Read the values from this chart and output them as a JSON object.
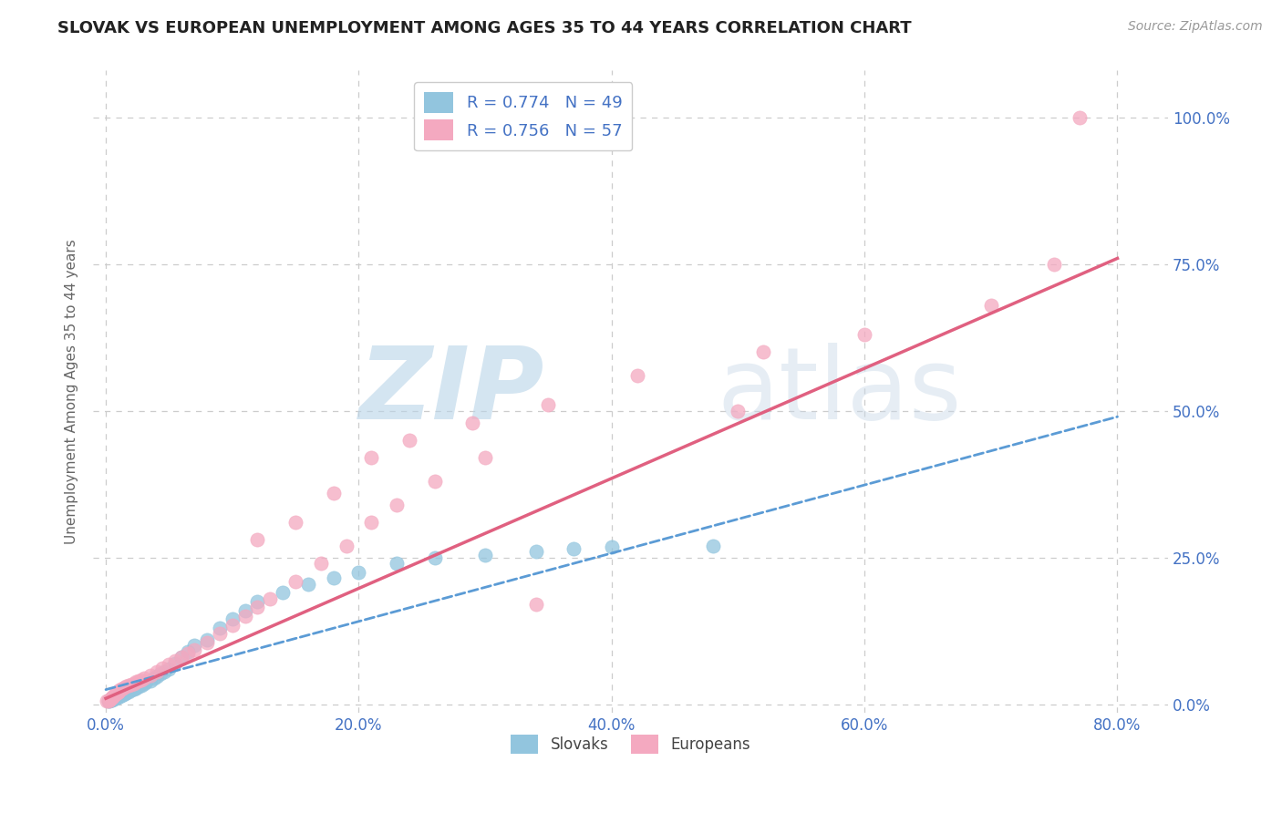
{
  "title": "SLOVAK VS EUROPEAN UNEMPLOYMENT AMONG AGES 35 TO 44 YEARS CORRELATION CHART",
  "source": "Source: ZipAtlas.com",
  "ylabel": "Unemployment Among Ages 35 to 44 years",
  "xlabel_ticks": [
    "0.0%",
    "20.0%",
    "40.0%",
    "60.0%",
    "80.0%"
  ],
  "xlabel_vals": [
    0.0,
    0.2,
    0.4,
    0.6,
    0.8
  ],
  "ylabel_ticks": [
    "0.0%",
    "25.0%",
    "50.0%",
    "75.0%",
    "100.0%"
  ],
  "ylabel_vals": [
    0.0,
    0.25,
    0.5,
    0.75,
    1.0
  ],
  "xlim": [
    -0.01,
    0.84
  ],
  "ylim": [
    -0.015,
    1.08
  ],
  "slovak_color": "#92c5de",
  "european_color": "#f4a9c0",
  "slovak_line_color": "#5b9bd5",
  "european_line_color": "#e06080",
  "slovak_R": 0.774,
  "slovak_N": 49,
  "european_R": 0.756,
  "european_N": 57,
  "legend_labels": [
    "Slovaks",
    "Europeans"
  ],
  "title_color": "#222222",
  "axis_color": "#4472c4",
  "grid_color": "#cccccc",
  "sk_x": [
    0.002,
    0.003,
    0.004,
    0.005,
    0.006,
    0.007,
    0.008,
    0.009,
    0.01,
    0.011,
    0.012,
    0.013,
    0.014,
    0.015,
    0.016,
    0.018,
    0.02,
    0.022,
    0.024,
    0.026,
    0.028,
    0.03,
    0.032,
    0.035,
    0.038,
    0.04,
    0.043,
    0.046,
    0.05,
    0.055,
    0.06,
    0.065,
    0.07,
    0.08,
    0.09,
    0.1,
    0.11,
    0.12,
    0.14,
    0.16,
    0.18,
    0.2,
    0.23,
    0.26,
    0.3,
    0.34,
    0.37,
    0.4,
    0.48
  ],
  "sk_y": [
    0.005,
    0.006,
    0.007,
    0.008,
    0.009,
    0.01,
    0.011,
    0.012,
    0.013,
    0.014,
    0.015,
    0.016,
    0.017,
    0.018,
    0.02,
    0.022,
    0.024,
    0.026,
    0.028,
    0.03,
    0.032,
    0.035,
    0.038,
    0.04,
    0.044,
    0.048,
    0.052,
    0.056,
    0.06,
    0.07,
    0.08,
    0.09,
    0.1,
    0.11,
    0.13,
    0.145,
    0.16,
    0.175,
    0.19,
    0.205,
    0.215,
    0.225,
    0.24,
    0.25,
    0.255,
    0.26,
    0.265,
    0.268,
    0.27
  ],
  "eu_x": [
    0.001,
    0.002,
    0.003,
    0.004,
    0.005,
    0.006,
    0.007,
    0.008,
    0.009,
    0.01,
    0.011,
    0.012,
    0.014,
    0.016,
    0.018,
    0.02,
    0.022,
    0.024,
    0.026,
    0.028,
    0.03,
    0.035,
    0.04,
    0.045,
    0.05,
    0.055,
    0.06,
    0.065,
    0.07,
    0.08,
    0.09,
    0.1,
    0.11,
    0.12,
    0.13,
    0.15,
    0.17,
    0.19,
    0.21,
    0.23,
    0.26,
    0.3,
    0.12,
    0.15,
    0.18,
    0.21,
    0.24,
    0.29,
    0.35,
    0.42,
    0.52,
    0.6,
    0.7,
    0.5,
    0.75,
    0.77,
    0.34
  ],
  "eu_y": [
    0.005,
    0.006,
    0.008,
    0.01,
    0.012,
    0.014,
    0.016,
    0.018,
    0.02,
    0.022,
    0.024,
    0.026,
    0.028,
    0.03,
    0.032,
    0.034,
    0.036,
    0.038,
    0.04,
    0.042,
    0.044,
    0.05,
    0.056,
    0.062,
    0.068,
    0.074,
    0.08,
    0.086,
    0.092,
    0.105,
    0.12,
    0.135,
    0.15,
    0.165,
    0.18,
    0.21,
    0.24,
    0.27,
    0.31,
    0.34,
    0.38,
    0.42,
    0.28,
    0.31,
    0.36,
    0.42,
    0.45,
    0.48,
    0.51,
    0.56,
    0.6,
    0.63,
    0.68,
    0.5,
    0.75,
    1.0,
    0.17
  ],
  "sk_trend_x": [
    0.0,
    0.8
  ],
  "sk_trend_y": [
    0.025,
    0.49
  ],
  "eu_trend_x": [
    0.0,
    0.8
  ],
  "eu_trend_y": [
    0.01,
    0.76
  ]
}
